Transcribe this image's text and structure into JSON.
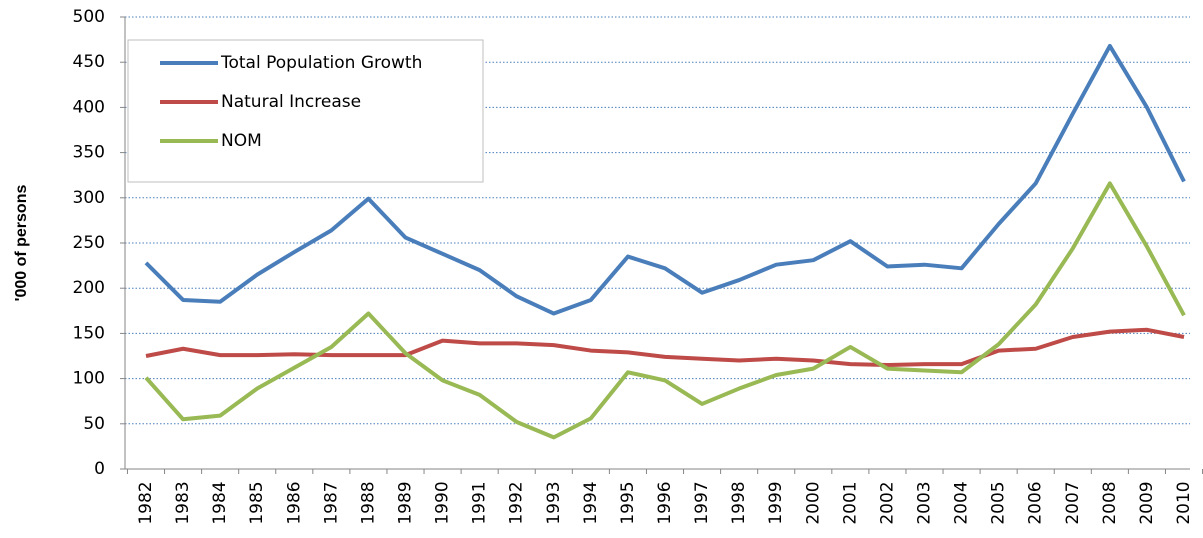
{
  "chart_data": {
    "type": "line",
    "y_label": "'000 of persons",
    "categories": [
      "1982",
      "1983",
      "1984",
      "1985",
      "1986",
      "1987",
      "1988",
      "1989",
      "1990",
      "1991",
      "1992",
      "1993",
      "1994",
      "1995",
      "1996",
      "1997",
      "1998",
      "1999",
      "2000",
      "2001",
      "2002",
      "2003",
      "2004",
      "2005",
      "2006",
      "2007",
      "2008",
      "2009",
      "2010"
    ],
    "series": [
      {
        "name": "Total Population Growth",
        "color": "#4a7ebb",
        "values": [
          228,
          187,
          185,
          215,
          240,
          264,
          299,
          256,
          238,
          220,
          191,
          172,
          187,
          235,
          222,
          195,
          209,
          226,
          231,
          252,
          224,
          226,
          222,
          271,
          316,
          393,
          468,
          400,
          318
        ]
      },
      {
        "name": "Natural Increase",
        "color": "#be4b48",
        "values": [
          125,
          133,
          126,
          126,
          127,
          126,
          126,
          126,
          142,
          139,
          139,
          137,
          131,
          129,
          124,
          122,
          120,
          122,
          120,
          116,
          115,
          116,
          116,
          131,
          133,
          146,
          152,
          154,
          146
        ]
      },
      {
        "name": "NOM",
        "color": "#98b954",
        "values": [
          101,
          55,
          59,
          89,
          112,
          135,
          172,
          128,
          98,
          82,
          52,
          35,
          56,
          107,
          98,
          72,
          89,
          104,
          111,
          135,
          111,
          109,
          107,
          138,
          182,
          244,
          316,
          246,
          170
        ]
      }
    ],
    "ylim": [
      0,
      500
    ],
    "yticks": [
      0,
      50,
      100,
      150,
      200,
      250,
      300,
      350,
      400,
      450,
      500
    ],
    "grid": true,
    "legend": "upper left"
  }
}
